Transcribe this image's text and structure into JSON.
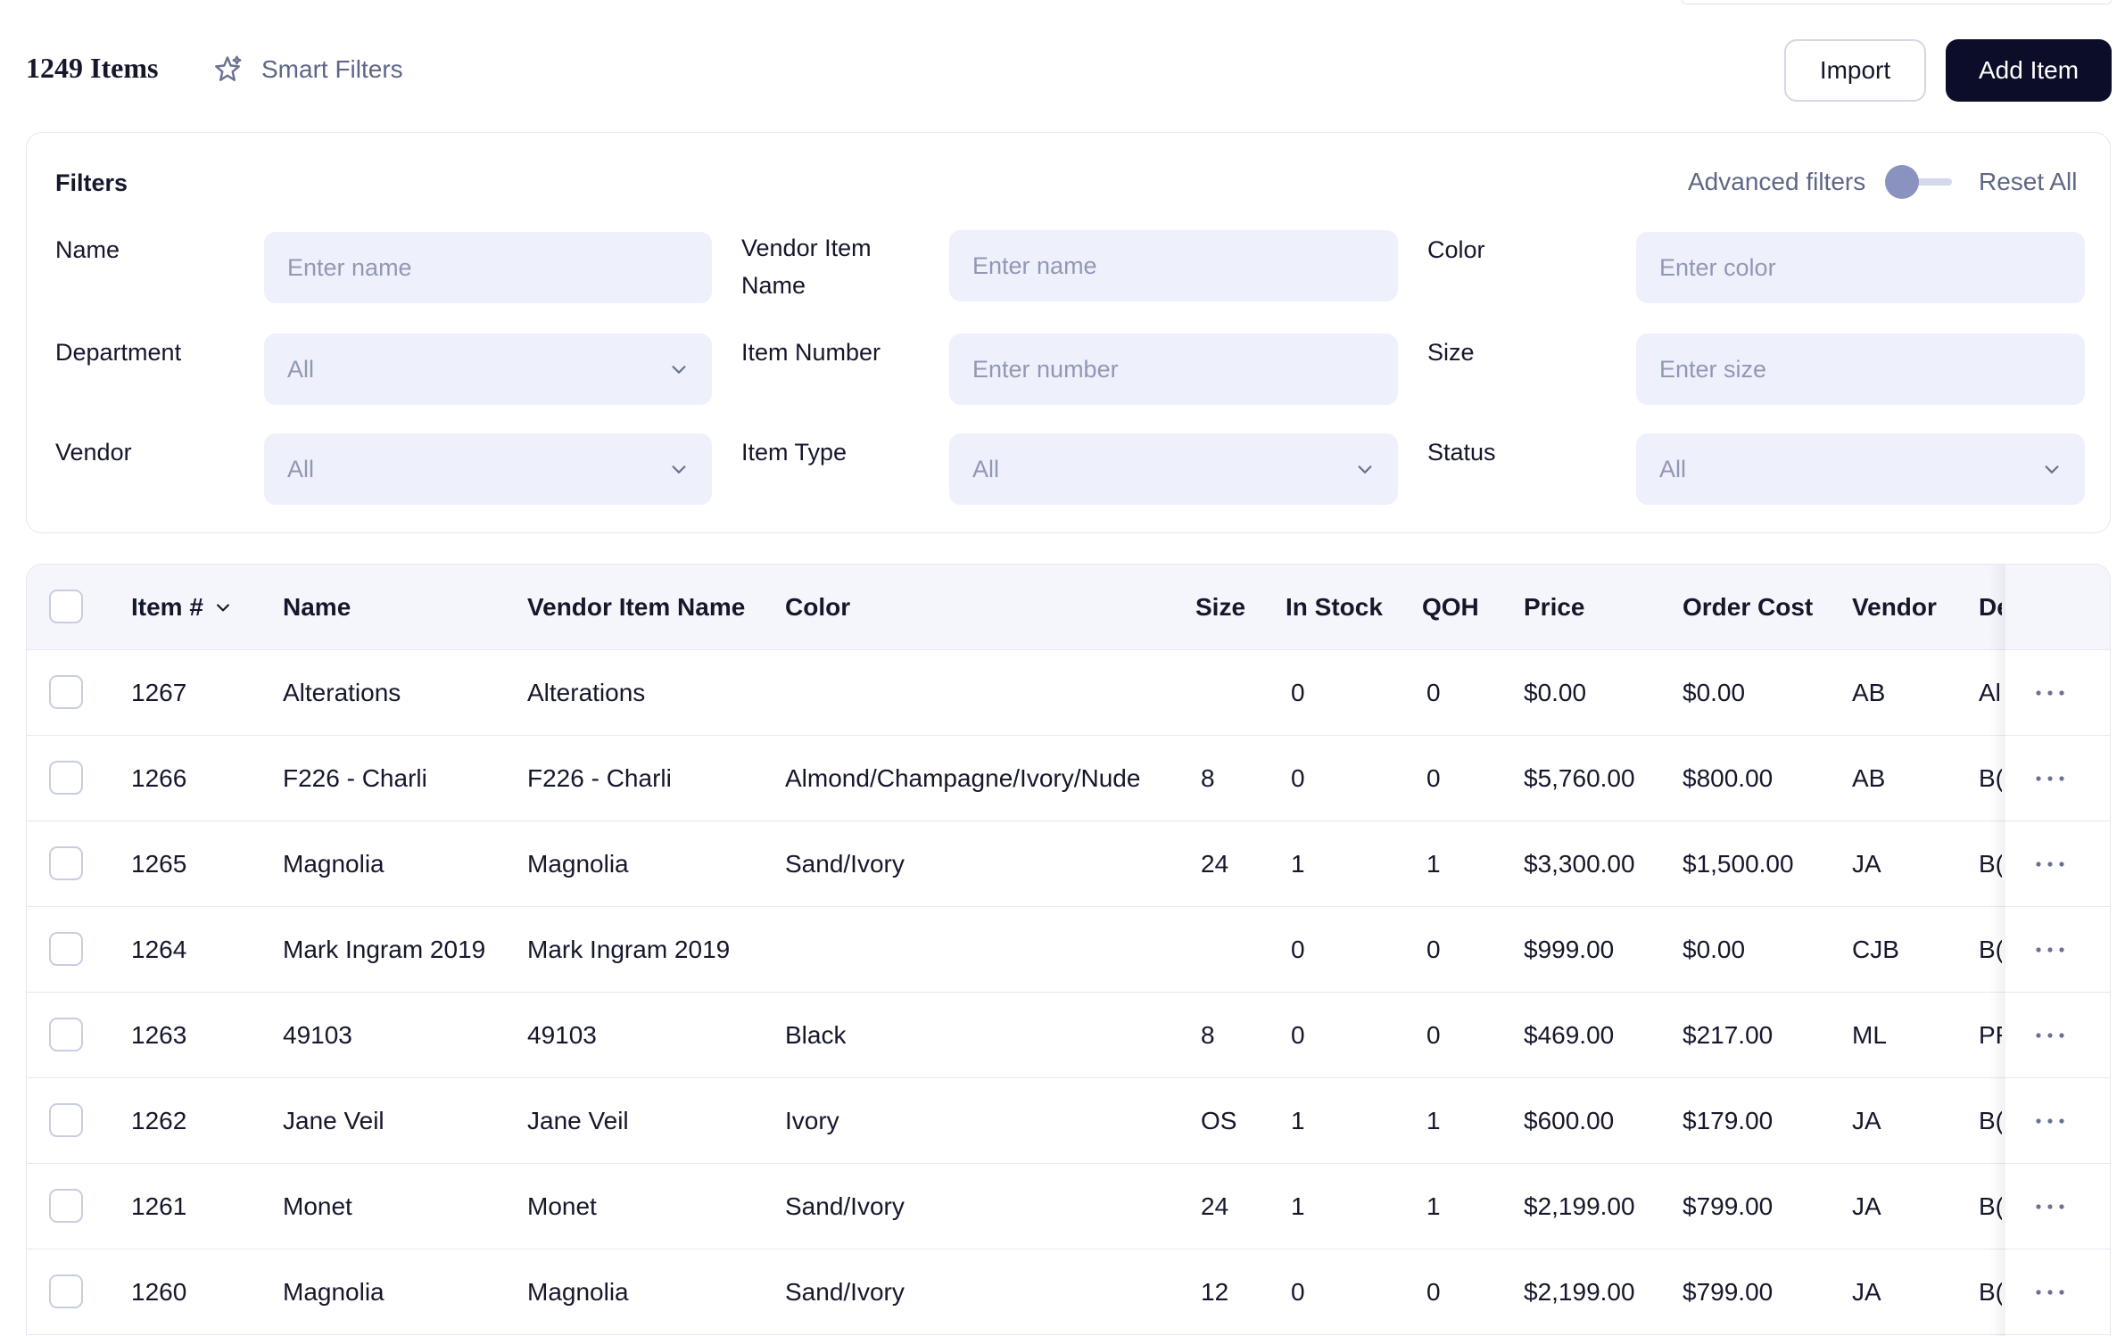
{
  "header": {
    "items_count": "1249 Items",
    "smart_filters_label": "Smart Filters",
    "import_label": "Import",
    "add_item_label": "Add Item"
  },
  "filters": {
    "title": "Filters",
    "advanced_filters_label": "Advanced filters",
    "advanced_filters_on": false,
    "reset_all_label": "Reset All",
    "name": {
      "label": "Name",
      "placeholder": "Enter name"
    },
    "vendor_item_name": {
      "label_line1": "Vendor Item",
      "label_line2": "Name",
      "placeholder": "Enter name"
    },
    "color": {
      "label": "Color",
      "placeholder": "Enter color"
    },
    "department": {
      "label": "Department",
      "value": "All"
    },
    "item_number": {
      "label": "Item Number",
      "placeholder": "Enter number"
    },
    "size": {
      "label": "Size",
      "placeholder": "Enter size"
    },
    "vendor": {
      "label": "Vendor",
      "value": "All"
    },
    "item_type": {
      "label": "Item Type",
      "value": "All"
    },
    "status": {
      "label": "Status",
      "value": "All"
    }
  },
  "table": {
    "columns": {
      "item_no": "Item #",
      "name": "Name",
      "vendor_item_name": "Vendor Item Name",
      "color": "Color",
      "size": "Size",
      "in_stock": "In Stock",
      "qoh": "QOH",
      "price": "Price",
      "order_cost": "Order Cost",
      "vendor": "Vendor",
      "dept": "De"
    },
    "rows": [
      {
        "item_no": "1267",
        "name": "Alterations",
        "vendor_item_name": "Alterations",
        "color": "",
        "size": "",
        "in_stock": "0",
        "qoh": "0",
        "price": "$0.00",
        "order_cost": "$0.00",
        "vendor": "AB",
        "dept": "Al"
      },
      {
        "item_no": "1266",
        "name": "F226 - Charli",
        "vendor_item_name": "F226 - Charli",
        "color": "Almond/Champagne/Ivory/Nude",
        "size": "8",
        "in_stock": "0",
        "qoh": "0",
        "price": "$5,760.00",
        "order_cost": "$800.00",
        "vendor": "AB",
        "dept": "B("
      },
      {
        "item_no": "1265",
        "name": "Magnolia",
        "vendor_item_name": "Magnolia",
        "color": "Sand/Ivory",
        "size": "24",
        "in_stock": "1",
        "qoh": "1",
        "price": "$3,300.00",
        "order_cost": "$1,500.00",
        "vendor": "JA",
        "dept": "B("
      },
      {
        "item_no": "1264",
        "name": "Mark Ingram 2019",
        "vendor_item_name": "Mark Ingram 2019",
        "color": "",
        "size": "",
        "in_stock": "0",
        "qoh": "0",
        "price": "$999.00",
        "order_cost": "$0.00",
        "vendor": "CJB",
        "dept": "B("
      },
      {
        "item_no": "1263",
        "name": "49103",
        "vendor_item_name": "49103",
        "color": "Black",
        "size": "8",
        "in_stock": "0",
        "qoh": "0",
        "price": "$469.00",
        "order_cost": "$217.00",
        "vendor": "ML",
        "dept": "PF"
      },
      {
        "item_no": "1262",
        "name": "Jane Veil",
        "vendor_item_name": "Jane Veil",
        "color": "Ivory",
        "size": "OS",
        "in_stock": "1",
        "qoh": "1",
        "price": "$600.00",
        "order_cost": "$179.00",
        "vendor": "JA",
        "dept": "B("
      },
      {
        "item_no": "1261",
        "name": "Monet",
        "vendor_item_name": "Monet",
        "color": "Sand/Ivory",
        "size": "24",
        "in_stock": "1",
        "qoh": "1",
        "price": "$2,199.00",
        "order_cost": "$799.00",
        "vendor": "JA",
        "dept": "B("
      },
      {
        "item_no": "1260",
        "name": "Magnolia",
        "vendor_item_name": "Magnolia",
        "color": "Sand/Ivory",
        "size": "12",
        "in_stock": "0",
        "qoh": "0",
        "price": "$2,199.00",
        "order_cost": "$799.00",
        "vendor": "JA",
        "dept": "B("
      }
    ]
  }
}
